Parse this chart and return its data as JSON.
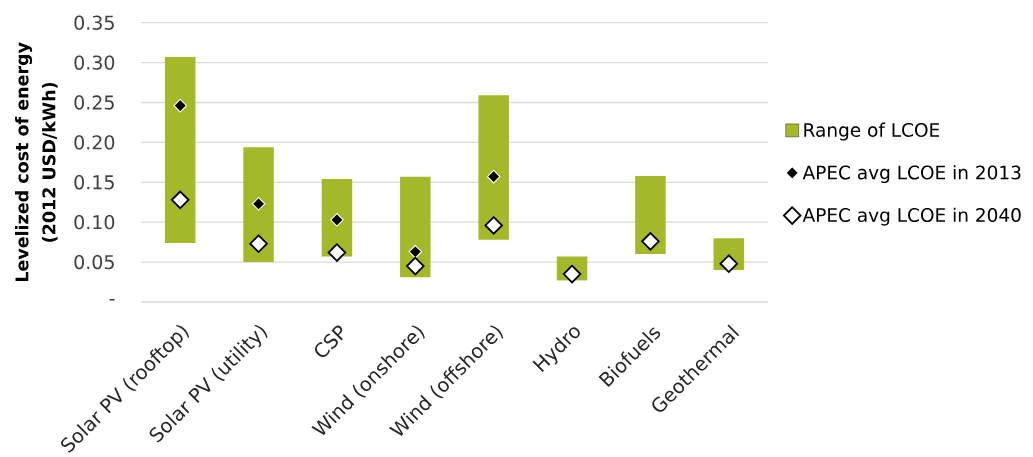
{
  "chart_data": {
    "type": "bar",
    "ylabel": "Levelized cost of energy (2012 USD/kWh)",
    "categories": [
      "Solar PV (rooftop)",
      "Solar PV (utility)",
      "CSP",
      "Wind (onshore)",
      "Wind (offshore)",
      "Hydro",
      "Biofuels",
      "Geothermal"
    ],
    "series": [
      {
        "name": "Range of LCOE",
        "color": "#a4b82a",
        "base": [
          0.074,
          0.05,
          0.057,
          0.031,
          0.078,
          0.027,
          0.06,
          0.04
        ],
        "values": [
          0.233,
          0.144,
          0.097,
          0.126,
          0.181,
          0.03,
          0.098,
          0.04
        ]
      },
      {
        "name": "APEC avg LCOE in 2013",
        "type": "scatter",
        "color": "#000000",
        "values": [
          0.246,
          0.123,
          0.103,
          0.063,
          0.157,
          null,
          null,
          null
        ]
      },
      {
        "name": "APEC avg LCOE in 2040",
        "type": "scatter",
        "color": "#ffffff",
        "values": [
          0.128,
          0.073,
          0.062,
          0.045,
          0.096,
          0.035,
          0.076,
          0.048
        ]
      }
    ],
    "ylim": [
      0,
      0.35
    ],
    "yticks": [
      {
        "value": 0,
        "label": "-"
      },
      0.05,
      {
        "value": 0.1,
        "label": "0.10"
      },
      0.15,
      {
        "value": 0.2,
        "label": "0.20"
      },
      0.25,
      {
        "value": 0.3,
        "label": "0.30"
      },
      0.35
    ],
    "marker": "diamond",
    "grid": "y",
    "legend": "right"
  }
}
